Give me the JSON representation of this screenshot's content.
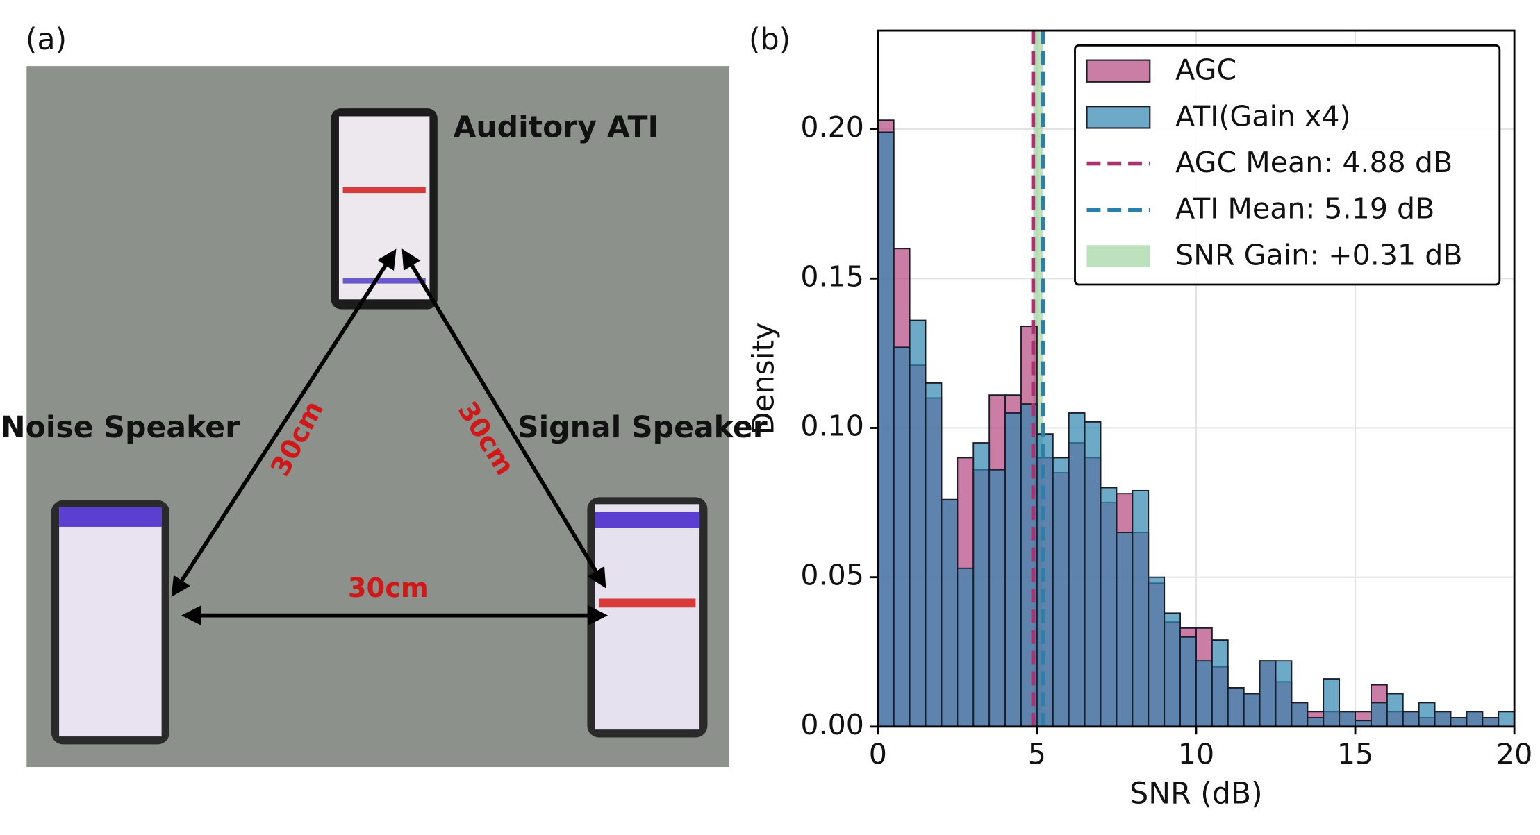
{
  "photo": {
    "panel_label": "(a)",
    "devices": [
      "Auditory ATI",
      "Noise Speaker",
      "Signal Speaker"
    ],
    "distances": [
      "30cm",
      "30cm",
      "30cm"
    ]
  },
  "chart_data": {
    "type": "histogram",
    "panel_label": "(b)",
    "xlabel": "SNR (dB)",
    "ylabel": "Density",
    "bins": [
      0,
      0.5,
      1,
      1.5,
      2,
      2.5,
      3,
      3.5,
      4,
      4.5,
      5,
      5.5,
      6,
      6.5,
      7,
      7.5,
      8,
      8.5,
      9,
      9.5,
      10,
      10.5,
      11,
      11.5,
      12,
      12.5,
      13,
      13.5,
      14,
      14.5,
      15,
      15.5,
      16,
      16.5,
      17,
      17.5,
      18,
      18.5,
      19,
      19.5,
      20
    ],
    "series": [
      {
        "name": "AGC",
        "color": "#b5477f",
        "values": [
          0.203,
          0.16,
          0.121,
          0.11,
          0.076,
          0.09,
          0.086,
          0.111,
          0.111,
          0.134,
          0.09,
          0.085,
          0.095,
          0.09,
          0.075,
          0.078,
          0.065,
          0.048,
          0.035,
          0.033,
          0.033,
          0.02,
          0.013,
          0.011,
          0.022,
          0.015,
          0.008,
          0.005,
          0.005,
          0.005,
          0.005,
          0.014,
          0.005,
          0.005,
          0.003,
          0.005,
          0.003,
          0.005,
          0.003,
          0
        ]
      },
      {
        "name": "ATI(Gain x4)",
        "color": "#2f86b0",
        "values": [
          0.199,
          0.127,
          0.136,
          0.115,
          0.076,
          0.053,
          0.095,
          0.086,
          0.105,
          0.108,
          0.098,
          0.09,
          0.105,
          0.102,
          0.08,
          0.065,
          0.079,
          0.05,
          0.038,
          0.03,
          0.022,
          0.029,
          0.013,
          0.011,
          0.022,
          0.022,
          0.008,
          0.003,
          0.016,
          0.005,
          0.002,
          0.008,
          0.011,
          0.005,
          0.008,
          0.005,
          0.003,
          0.005,
          0.003,
          0.005
        ]
      }
    ],
    "mean_lines": [
      {
        "label": "AGC Mean: 4.88 dB",
        "value": 4.88,
        "color": "#a8336e"
      },
      {
        "label": "ATI Mean: 5.19 dB",
        "value": 5.19,
        "color": "#2a7fab"
      }
    ],
    "span": {
      "label": "SNR Gain: +0.31 dB",
      "range": [
        4.88,
        5.19
      ],
      "color": "#9fd49f"
    },
    "xlim": [
      0,
      20
    ],
    "ylim": [
      0,
      0.233
    ],
    "xticks": [
      0,
      5,
      10,
      15,
      20
    ],
    "yticks": [
      {
        "value": 0,
        "label": "0.00"
      },
      {
        "value": 0.05,
        "label": "0.05"
      },
      {
        "value": 0.1,
        "label": "0.10"
      },
      {
        "value": 0.15,
        "label": "0.15"
      },
      {
        "value": 0.2,
        "label": "0.20"
      }
    ],
    "grid": true,
    "legend": "upper right"
  }
}
